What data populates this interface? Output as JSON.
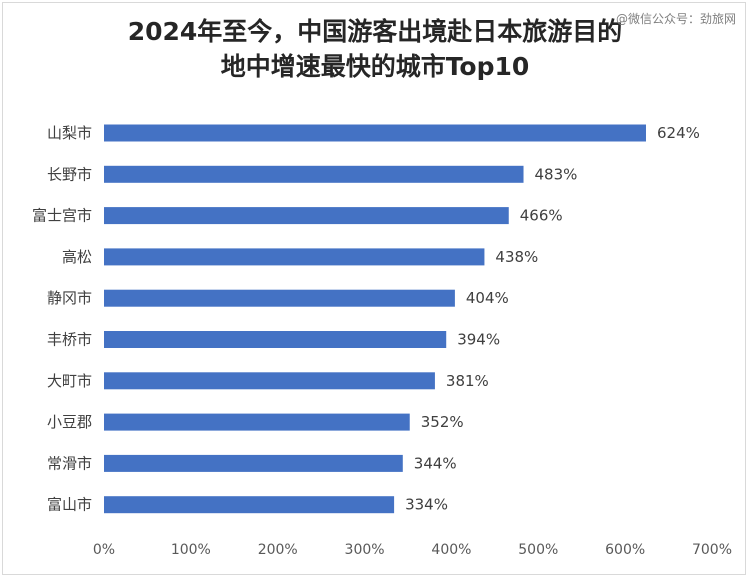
{
  "title": "2024年至今，中国游客出境赴日本旅游目的\n地中增速最快的城市Top10",
  "watermark": "@微信公众号：劲旅网",
  "chart_data": {
    "type": "bar",
    "orientation": "horizontal",
    "categories": [
      "山梨市",
      "长野市",
      "富士宫市",
      "高松",
      "静冈市",
      "丰桥市",
      "大町市",
      "小豆郡",
      "常滑市",
      "富山市"
    ],
    "values": [
      624,
      483,
      466,
      438,
      404,
      394,
      381,
      352,
      344,
      334
    ],
    "value_labels": [
      "624%",
      "483%",
      "466%",
      "438%",
      "404%",
      "394%",
      "381%",
      "352%",
      "344%",
      "334%"
    ],
    "xlim": [
      0,
      700
    ],
    "x_ticks": [
      "0%",
      "100%",
      "200%",
      "300%",
      "400%",
      "500%",
      "600%",
      "700%"
    ],
    "grid": false,
    "bar_color": "#4472c4"
  }
}
